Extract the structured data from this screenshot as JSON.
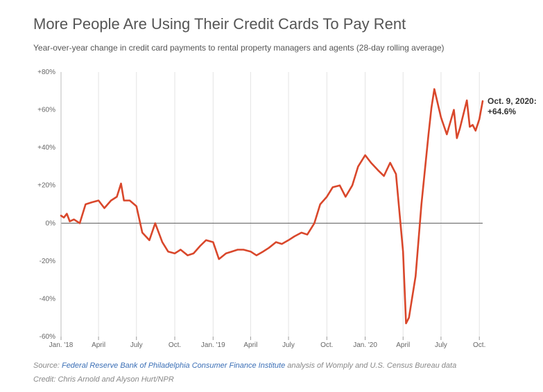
{
  "chart_data": {
    "type": "line",
    "title": "More People Are Using Their Credit Cards To Pay Rent",
    "subtitle": "Year-over-year change in credit card payments to rental property managers and agents (28-day rolling average)",
    "xlabel": "",
    "ylabel": "",
    "ylim": [
      -60,
      80
    ],
    "y_ticks": [
      80,
      60,
      40,
      20,
      0,
      -20,
      -40,
      -60
    ],
    "y_tick_labels": [
      "+80%",
      "+60%",
      "+40%",
      "+20%",
      "0%",
      "-20%",
      "-40%",
      "-60%"
    ],
    "xlim": [
      "2018-01-01",
      "2020-10-09"
    ],
    "x_ticks": [
      "2018-01-01",
      "2018-04-01",
      "2018-07-01",
      "2018-10-01",
      "2019-01-01",
      "2019-04-01",
      "2019-07-01",
      "2019-10-01",
      "2020-01-01",
      "2020-04-01",
      "2020-07-01",
      "2020-10-01"
    ],
    "x_tick_labels": [
      "Jan. '18",
      "April",
      "July",
      "Oct.",
      "Jan. '19",
      "April",
      "July",
      "Oct.",
      "Jan. '20",
      "April",
      "July",
      "Oct."
    ],
    "grid": "vertical",
    "line_color": "#d9472b",
    "series": [
      {
        "x": [
          "2018-01-01",
          "2018-01-08",
          "2018-01-15",
          "2018-01-22",
          "2018-02-01",
          "2018-02-15",
          "2018-03-01",
          "2018-03-15",
          "2018-04-01",
          "2018-04-15",
          "2018-05-01",
          "2018-05-15",
          "2018-05-25",
          "2018-06-01",
          "2018-06-15",
          "2018-07-01",
          "2018-07-15",
          "2018-08-01",
          "2018-08-15",
          "2018-09-01",
          "2018-09-15",
          "2018-10-01",
          "2018-10-15",
          "2018-11-01",
          "2018-11-15",
          "2018-12-01",
          "2018-12-15",
          "2019-01-01",
          "2019-01-15",
          "2019-02-01",
          "2019-02-15",
          "2019-03-01",
          "2019-03-15",
          "2019-04-01",
          "2019-04-15",
          "2019-05-01",
          "2019-05-15",
          "2019-06-01",
          "2019-06-15",
          "2019-07-01",
          "2019-07-15",
          "2019-08-01",
          "2019-08-15",
          "2019-09-01",
          "2019-09-15",
          "2019-10-01",
          "2019-10-15",
          "2019-11-01",
          "2019-11-15",
          "2019-12-01",
          "2019-12-15",
          "2020-01-01",
          "2020-01-15",
          "2020-02-01",
          "2020-02-15",
          "2020-03-01",
          "2020-03-15",
          "2020-04-01",
          "2020-04-08",
          "2020-04-15",
          "2020-05-01",
          "2020-05-15",
          "2020-06-01",
          "2020-06-08",
          "2020-06-15",
          "2020-07-01",
          "2020-07-15",
          "2020-08-01",
          "2020-08-08",
          "2020-08-15",
          "2020-09-01",
          "2020-09-08",
          "2020-09-15",
          "2020-09-22",
          "2020-10-01",
          "2020-10-09"
        ],
        "values": [
          4,
          3,
          5,
          1,
          2,
          0,
          10,
          11,
          12,
          8,
          12,
          14,
          21,
          12,
          12,
          9,
          -5,
          -9,
          0,
          -10,
          -15,
          -16,
          -14,
          -17,
          -16,
          -12,
          -9,
          -10,
          -19,
          -16,
          -15,
          -14,
          -14,
          -15,
          -17,
          -15,
          -13,
          -10,
          -11,
          -9,
          -7,
          -5,
          -6,
          0,
          10,
          14,
          19,
          20,
          14,
          20,
          30,
          36,
          32,
          28,
          25,
          32,
          26,
          -15,
          -53,
          -50,
          -28,
          10,
          47,
          61,
          71,
          56,
          47,
          60,
          45,
          50,
          65,
          51,
          52,
          49,
          55,
          64.6
        ]
      }
    ],
    "annotations": [
      {
        "line1": "Oct. 9, 2020:",
        "line2": "+64.6%"
      }
    ]
  },
  "footer": {
    "source_prefix": "Source: ",
    "source_link": "Federal Reserve Bank of Philadelphia Consumer Finance Institute",
    "source_suffix": " analysis of Womply and U.S. Census Bureau data",
    "credit": "Credit: Chris Arnold and Alyson Hurt/NPR"
  }
}
